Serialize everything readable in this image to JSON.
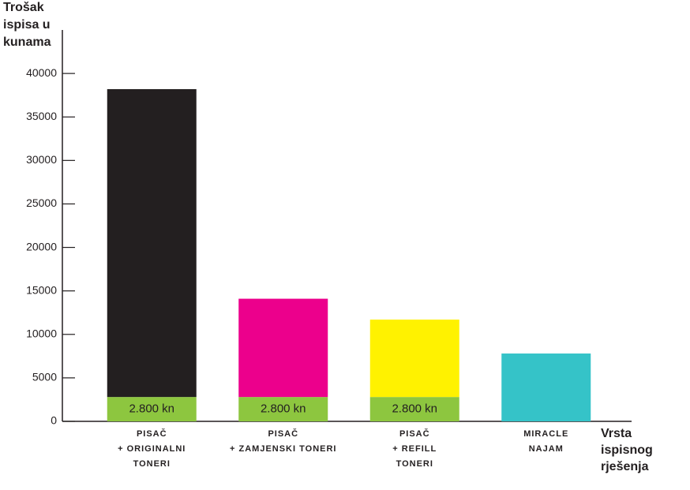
{
  "chart_data": {
    "type": "stacked-bar",
    "y_label": [
      "Trošak",
      "ispisa u",
      "kunama"
    ],
    "x_label": [
      "Vrsta",
      "ispisnog",
      "rješenja"
    ],
    "categories": [
      [
        "PISAČ",
        "+ ORIGINALNI",
        "TONERI"
      ],
      [
        "PISAČ",
        "+ ZAMJENSKI TONERI"
      ],
      [
        "PISAČ",
        "+ REFILL",
        "TONERI"
      ],
      [
        "MIRACLE",
        "NAJAM"
      ]
    ],
    "series": [
      {
        "color": "#8dc63f",
        "values": [
          2800,
          2800,
          2800,
          null
        ],
        "value_labels": [
          "2.800 kn",
          "2.800 kn",
          "2.800 kn",
          null
        ]
      },
      {
        "colors": [
          "#231f20",
          "#ec008c",
          "#fff200",
          "#35c3c8"
        ],
        "values": [
          35400,
          11300,
          8900,
          7800
        ]
      }
    ],
    "ylim": [
      0,
      45000
    ],
    "yticks": [
      0,
      5000,
      10000,
      15000,
      20000,
      25000,
      30000,
      35000,
      40000
    ]
  }
}
